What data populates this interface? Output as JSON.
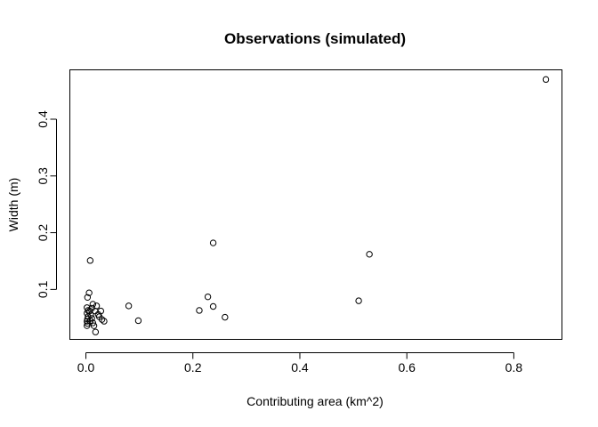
{
  "chart_data": {
    "type": "scatter",
    "title": "Observations (simulated)",
    "xlabel": "Contributing area (km^2)",
    "ylabel": "Width (m)",
    "xlim": [
      -0.03,
      0.89
    ],
    "ylim": [
      0.012,
      0.487
    ],
    "xticks": [
      0.0,
      0.2,
      0.4,
      0.6,
      0.8
    ],
    "xtick_labels": [
      "0.0",
      "0.2",
      "0.4",
      "0.6",
      "0.8"
    ],
    "yticks": [
      0.1,
      0.2,
      0.3,
      0.4
    ],
    "ytick_labels": [
      "0.1",
      "0.2",
      "0.3",
      "0.4"
    ],
    "grid": false,
    "legend": "none",
    "points": [
      {
        "x": 0.008,
        "y": 0.151
      },
      {
        "x": 0.006,
        "y": 0.094
      },
      {
        "x": 0.003,
        "y": 0.086
      },
      {
        "x": 0.002,
        "y": 0.068
      },
      {
        "x": 0.004,
        "y": 0.063
      },
      {
        "x": 0.002,
        "y": 0.058
      },
      {
        "x": 0.004,
        "y": 0.052
      },
      {
        "x": 0.003,
        "y": 0.048
      },
      {
        "x": 0.002,
        "y": 0.044
      },
      {
        "x": 0.003,
        "y": 0.04
      },
      {
        "x": 0.002,
        "y": 0.036
      },
      {
        "x": 0.007,
        "y": 0.062
      },
      {
        "x": 0.009,
        "y": 0.055
      },
      {
        "x": 0.011,
        "y": 0.067
      },
      {
        "x": 0.013,
        "y": 0.074
      },
      {
        "x": 0.008,
        "y": 0.045
      },
      {
        "x": 0.011,
        "y": 0.049
      },
      {
        "x": 0.013,
        "y": 0.041
      },
      {
        "x": 0.015,
        "y": 0.036
      },
      {
        "x": 0.018,
        "y": 0.025
      },
      {
        "x": 0.017,
        "y": 0.062
      },
      {
        "x": 0.02,
        "y": 0.071
      },
      {
        "x": 0.023,
        "y": 0.056
      },
      {
        "x": 0.025,
        "y": 0.052
      },
      {
        "x": 0.028,
        "y": 0.062
      },
      {
        "x": 0.03,
        "y": 0.047
      },
      {
        "x": 0.034,
        "y": 0.044
      },
      {
        "x": 0.08,
        "y": 0.071
      },
      {
        "x": 0.098,
        "y": 0.045
      },
      {
        "x": 0.212,
        "y": 0.063
      },
      {
        "x": 0.228,
        "y": 0.087
      },
      {
        "x": 0.238,
        "y": 0.07
      },
      {
        "x": 0.238,
        "y": 0.182
      },
      {
        "x": 0.26,
        "y": 0.051
      },
      {
        "x": 0.51,
        "y": 0.08
      },
      {
        "x": 0.53,
        "y": 0.162
      },
      {
        "x": 0.86,
        "y": 0.47
      }
    ]
  }
}
